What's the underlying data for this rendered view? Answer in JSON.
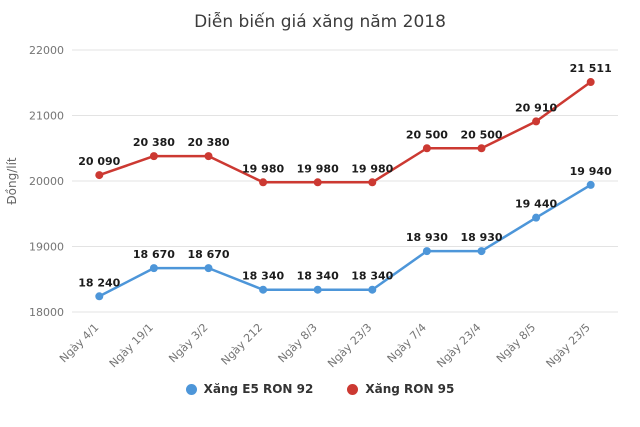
{
  "chart_data": {
    "type": "line",
    "title": "Diễn biến giá xăng năm 2018",
    "xlabel": "",
    "ylabel": "Đồng/lít",
    "ylim": [
      18000,
      22000
    ],
    "yticks": [
      18000,
      19000,
      20000,
      21000,
      22000
    ],
    "grid": true,
    "legend_position": "bottom",
    "categories": [
      "Ngày 4/1",
      "Ngày 19/1",
      "Ngày 3/2",
      "Ngày 212",
      "Ngày 8/3",
      "Ngày 23/3",
      "Ngày 7/4",
      "Ngày 23/4",
      "Ngày 8/5",
      "Ngày 23/5"
    ],
    "series": [
      {
        "name": "Xăng E5 RON 92",
        "color": "#4d96d9",
        "values": [
          18240,
          18670,
          18670,
          18340,
          18340,
          18340,
          18930,
          18930,
          19440,
          19940
        ],
        "labels": [
          "18 240",
          "18 670",
          "18 670",
          "18 340",
          "18 340",
          "18 340",
          "18 930",
          "18 930",
          "19 440",
          "19 940"
        ]
      },
      {
        "name": "Xăng RON 95",
        "color": "#cc3932",
        "values": [
          20090,
          20380,
          20380,
          19980,
          19980,
          19980,
          20500,
          20500,
          20910,
          21511
        ],
        "labels": [
          "20 090",
          "20 380",
          "20 380",
          "19 980",
          "19 980",
          "19 980",
          "20 500",
          "20 500",
          "20 910",
          "21 511"
        ]
      }
    ]
  }
}
